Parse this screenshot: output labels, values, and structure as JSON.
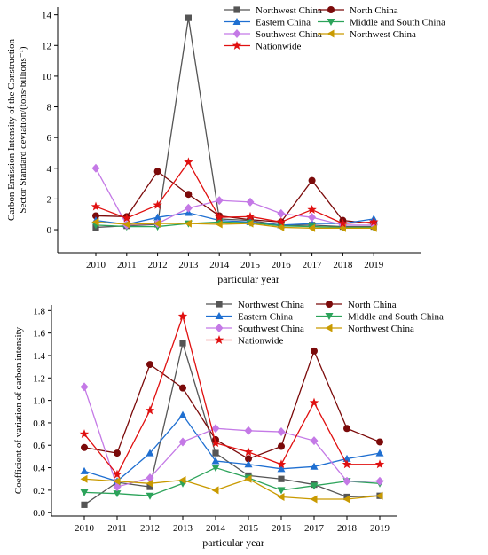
{
  "chart_data": [
    {
      "type": "line",
      "x": [
        "2010",
        "2011",
        "2012",
        "2013",
        "2014",
        "2015",
        "2016",
        "2017",
        "2018",
        "2019"
      ],
      "xlabel": "particular year",
      "ylabel_lines": [
        "Carbon Emission Intensity of the Construction",
        "Sector Standard deviation/(tons·billions⁻¹)"
      ],
      "ylim": [
        -1.5,
        14.5
      ],
      "yticks": [
        "0",
        "2",
        "4",
        "6",
        "8",
        "10",
        "12",
        "14"
      ],
      "legend_position": "top-right",
      "series": [
        {
          "name": "Northwest China",
          "color": "#555555",
          "marker": "square",
          "values": [
            0.15,
            0.25,
            0.35,
            13.8,
            0.7,
            0.6,
            0.3,
            0.3,
            0.2,
            0.2
          ]
        },
        {
          "name": "North China",
          "color": "#7b0a0a",
          "marker": "circle",
          "values": [
            0.9,
            0.85,
            3.8,
            2.3,
            0.9,
            0.65,
            0.5,
            3.2,
            0.6,
            0.4
          ]
        },
        {
          "name": "Eastern China",
          "color": "#1f6fd1",
          "marker": "triangle-up",
          "values": [
            0.6,
            0.35,
            0.8,
            1.1,
            0.6,
            0.5,
            0.3,
            0.4,
            0.4,
            0.7
          ]
        },
        {
          "name": "Middle and South China",
          "color": "#2ca35a",
          "marker": "triangle-down",
          "values": [
            0.3,
            0.2,
            0.2,
            0.4,
            0.5,
            0.45,
            0.25,
            0.2,
            0.15,
            0.15
          ]
        },
        {
          "name": "Southwest China",
          "color": "#c479e6",
          "marker": "diamond",
          "values": [
            4.0,
            0.3,
            0.4,
            1.4,
            1.9,
            1.8,
            1.05,
            0.8,
            0.3,
            0.3
          ]
        },
        {
          "name": "Northwest China",
          "color": "#c99a00",
          "marker": "triangle-left",
          "values": [
            0.5,
            0.35,
            0.4,
            0.4,
            0.35,
            0.4,
            0.15,
            0.1,
            0.1,
            0.1
          ]
        },
        {
          "name": "Nationwide",
          "color": "#e01010",
          "marker": "star",
          "values": [
            1.5,
            0.75,
            1.6,
            4.4,
            0.8,
            0.85,
            0.5,
            1.3,
            0.4,
            0.5
          ]
        }
      ]
    },
    {
      "type": "line",
      "x": [
        "2010",
        "2011",
        "2012",
        "2013",
        "2014",
        "2015",
        "2016",
        "2017",
        "2018",
        "2019"
      ],
      "xlabel": "particular year",
      "ylabel_lines": [
        "Coefficient of variation of carbon intensity"
      ],
      "ylim": [
        -0.03,
        1.85
      ],
      "yticks": [
        "0.0",
        "0.2",
        "0.4",
        "0.6",
        "0.8",
        "1.0",
        "1.2",
        "1.4",
        "1.6",
        "1.8"
      ],
      "legend_position": "top-right",
      "series": [
        {
          "name": "Northwest China",
          "color": "#555555",
          "marker": "square",
          "values": [
            0.07,
            0.27,
            0.23,
            1.51,
            0.53,
            0.33,
            0.3,
            0.25,
            0.14,
            0.15
          ]
        },
        {
          "name": "North China",
          "color": "#7b0a0a",
          "marker": "circle",
          "values": [
            0.58,
            0.53,
            1.32,
            1.11,
            0.65,
            0.48,
            0.59,
            1.44,
            0.75,
            0.63
          ]
        },
        {
          "name": "Eastern China",
          "color": "#1f6fd1",
          "marker": "triangle-up",
          "values": [
            0.37,
            0.28,
            0.53,
            0.87,
            0.46,
            0.43,
            0.39,
            0.41,
            0.48,
            0.53
          ]
        },
        {
          "name": "Middle and South China",
          "color": "#2ca35a",
          "marker": "triangle-down",
          "values": [
            0.18,
            0.17,
            0.15,
            0.26,
            0.4,
            0.31,
            0.2,
            0.24,
            0.28,
            0.26
          ]
        },
        {
          "name": "Southwest China",
          "color": "#c479e6",
          "marker": "diamond",
          "values": [
            1.12,
            0.23,
            0.31,
            0.63,
            0.75,
            0.73,
            0.72,
            0.64,
            0.28,
            0.28
          ]
        },
        {
          "name": "Northwest China",
          "color": "#c99a00",
          "marker": "triangle-left",
          "values": [
            0.3,
            0.28,
            0.26,
            0.29,
            0.2,
            0.3,
            0.14,
            0.12,
            0.12,
            0.15
          ]
        },
        {
          "name": "Nationwide",
          "color": "#e01010",
          "marker": "star",
          "values": [
            0.7,
            0.34,
            0.91,
            1.75,
            0.62,
            0.54,
            0.43,
            0.98,
            0.43,
            0.43
          ]
        }
      ]
    }
  ]
}
